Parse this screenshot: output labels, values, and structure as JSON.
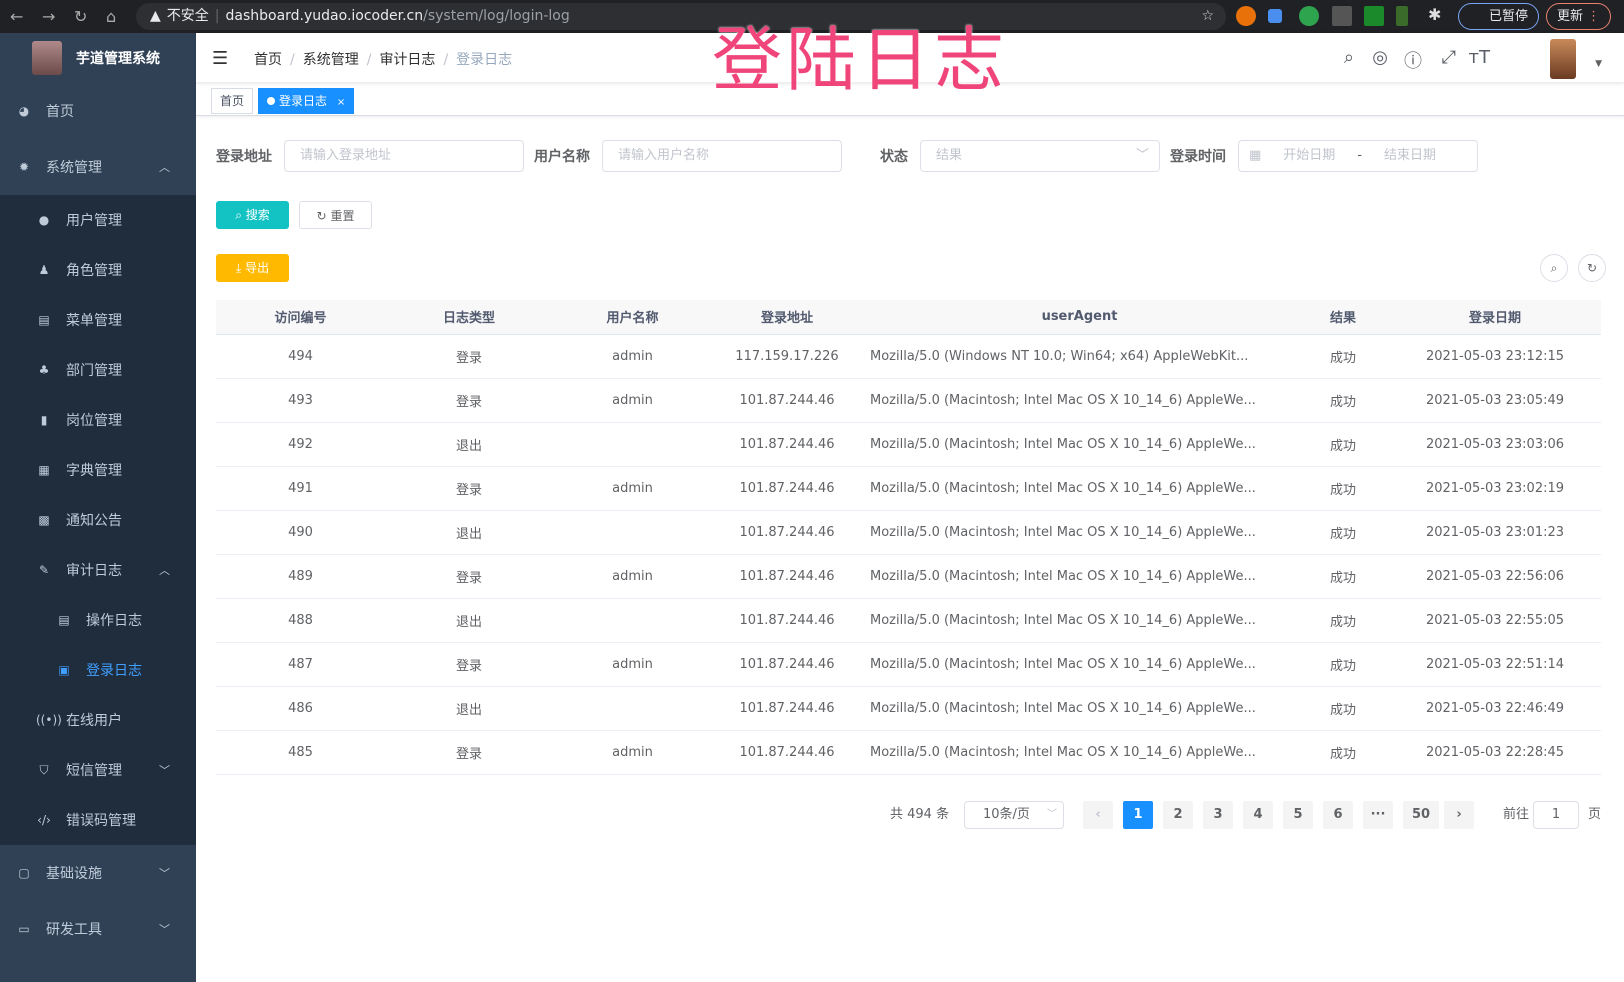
{
  "browser": {
    "security": "不安全",
    "host": "dashboard.yudao.iocoder.cn",
    "path": "/system/log/login-log",
    "paused": "已暂停",
    "update": "更新"
  },
  "overlay_title": "登陆日志",
  "sidebar": {
    "app_title": "芋道管理系统",
    "items": [
      {
        "label": "首页",
        "icon": "dashboard-icon"
      },
      {
        "label": "系统管理",
        "icon": "gear-icon",
        "expanded": true,
        "children": [
          {
            "label": "用户管理",
            "icon": "user-icon"
          },
          {
            "label": "角色管理",
            "icon": "role-icon"
          },
          {
            "label": "菜单管理",
            "icon": "menu-icon"
          },
          {
            "label": "部门管理",
            "icon": "tree-icon"
          },
          {
            "label": "岗位管理",
            "icon": "post-icon"
          },
          {
            "label": "字典管理",
            "icon": "dict-icon"
          },
          {
            "label": "通知公告",
            "icon": "message-icon"
          },
          {
            "label": "审计日志",
            "icon": "edit-icon",
            "expanded": true,
            "children": [
              {
                "label": "操作日志",
                "icon": "form-icon"
              },
              {
                "label": "登录日志",
                "icon": "logininfor-icon",
                "active": true
              }
            ]
          },
          {
            "label": "在线用户",
            "icon": "online-icon"
          },
          {
            "label": "短信管理",
            "icon": "shield-icon"
          },
          {
            "label": "错误码管理",
            "icon": "code-icon"
          }
        ]
      },
      {
        "label": "基础设施",
        "icon": "monitor-icon"
      },
      {
        "label": "研发工具",
        "icon": "tool-icon"
      }
    ]
  },
  "breadcrumb": [
    "首页",
    "系统管理",
    "审计日志",
    "登录日志"
  ],
  "tags": [
    {
      "label": "首页"
    },
    {
      "label": "登录日志",
      "active": true
    }
  ],
  "filters": {
    "ip_label": "登录地址",
    "ip_placeholder": "请输入登录地址",
    "user_label": "用户名称",
    "user_placeholder": "请输入用户名称",
    "status_label": "状态",
    "status_placeholder": "结果",
    "time_label": "登录时间",
    "start_placeholder": "开始日期",
    "range_sep": "-",
    "end_placeholder": "结束日期"
  },
  "buttons": {
    "search": "搜索",
    "reset": "重置",
    "export": "导出"
  },
  "table": {
    "columns": [
      "访问编号",
      "日志类型",
      "用户名称",
      "登录地址",
      "userAgent",
      "结果",
      "登录日期"
    ],
    "rows": [
      [
        "494",
        "登录",
        "admin",
        "117.159.17.226",
        "Mozilla/5.0 (Windows NT 10.0; Win64; x64) AppleWebKit...",
        "成功",
        "2021-05-03 23:12:15"
      ],
      [
        "493",
        "登录",
        "admin",
        "101.87.244.46",
        "Mozilla/5.0 (Macintosh; Intel Mac OS X 10_14_6) AppleWe...",
        "成功",
        "2021-05-03 23:05:49"
      ],
      [
        "492",
        "退出",
        "",
        "101.87.244.46",
        "Mozilla/5.0 (Macintosh; Intel Mac OS X 10_14_6) AppleWe...",
        "成功",
        "2021-05-03 23:03:06"
      ],
      [
        "491",
        "登录",
        "admin",
        "101.87.244.46",
        "Mozilla/5.0 (Macintosh; Intel Mac OS X 10_14_6) AppleWe...",
        "成功",
        "2021-05-03 23:02:19"
      ],
      [
        "490",
        "退出",
        "",
        "101.87.244.46",
        "Mozilla/5.0 (Macintosh; Intel Mac OS X 10_14_6) AppleWe...",
        "成功",
        "2021-05-03 23:01:23"
      ],
      [
        "489",
        "登录",
        "admin",
        "101.87.244.46",
        "Mozilla/5.0 (Macintosh; Intel Mac OS X 10_14_6) AppleWe...",
        "成功",
        "2021-05-03 22:56:06"
      ],
      [
        "488",
        "退出",
        "",
        "101.87.244.46",
        "Mozilla/5.0 (Macintosh; Intel Mac OS X 10_14_6) AppleWe...",
        "成功",
        "2021-05-03 22:55:05"
      ],
      [
        "487",
        "登录",
        "admin",
        "101.87.244.46",
        "Mozilla/5.0 (Macintosh; Intel Mac OS X 10_14_6) AppleWe...",
        "成功",
        "2021-05-03 22:51:14"
      ],
      [
        "486",
        "退出",
        "",
        "101.87.244.46",
        "Mozilla/5.0 (Macintosh; Intel Mac OS X 10_14_6) AppleWe...",
        "成功",
        "2021-05-03 22:46:49"
      ],
      [
        "485",
        "登录",
        "admin",
        "101.87.244.46",
        "Mozilla/5.0 (Macintosh; Intel Mac OS X 10_14_6) AppleWe...",
        "成功",
        "2021-05-03 22:28:45"
      ]
    ]
  },
  "pagination": {
    "total": "共 494 条",
    "page_size": "10条/页",
    "pages": [
      "1",
      "2",
      "3",
      "4",
      "5",
      "6",
      "···",
      "50"
    ],
    "current": "1",
    "goto_label": "前往",
    "goto_value": "1",
    "goto_suffix": "页"
  },
  "colors": {
    "sidebar": "#304156",
    "primary": "#1890ff",
    "search": "#13c2c2",
    "export": "#ffba00",
    "overlay": "#f0457a"
  }
}
